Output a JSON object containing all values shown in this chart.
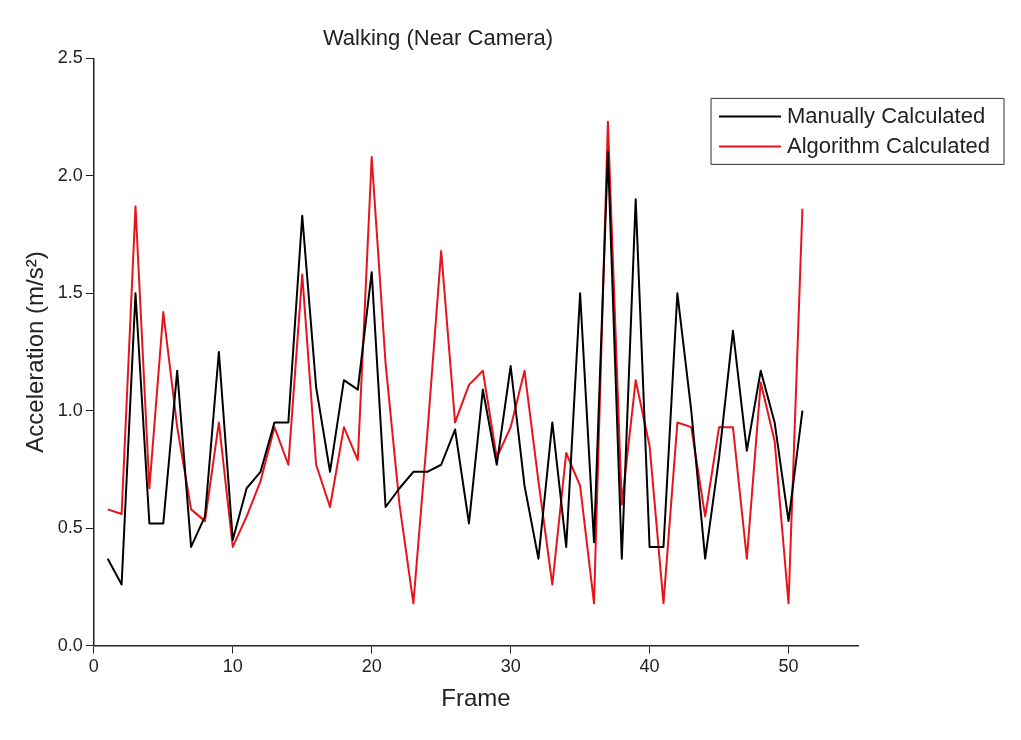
{
  "chart_data": {
    "type": "line",
    "title": "Walking (Near Camera)",
    "xlabel": "Frame",
    "ylabel": "Acceleration (m/s²)",
    "x": [
      1,
      2,
      3,
      4,
      5,
      6,
      7,
      8,
      9,
      10,
      11,
      12,
      13,
      14,
      15,
      16,
      17,
      18,
      19,
      20,
      21,
      22,
      23,
      24,
      25,
      26,
      27,
      28,
      29,
      30,
      31,
      32,
      33,
      34,
      35,
      36,
      37,
      38,
      39,
      40,
      41,
      42,
      43,
      44,
      45,
      46,
      47,
      48,
      49,
      50,
      51
    ],
    "series": [
      {
        "name": "Manually Calculated",
        "color": "#000000",
        "values": [
          0.37,
          0.26,
          1.5,
          0.52,
          0.52,
          1.17,
          0.42,
          0.55,
          1.25,
          0.45,
          0.67,
          0.74,
          0.95,
          0.95,
          1.83,
          1.1,
          0.74,
          1.13,
          1.09,
          1.59,
          0.59,
          0.67,
          0.74,
          0.74,
          0.77,
          0.92,
          0.52,
          1.09,
          0.77,
          1.19,
          0.68,
          0.37,
          0.95,
          0.42,
          1.5,
          0.44,
          2.1,
          0.37,
          1.9,
          0.42,
          0.42,
          1.5,
          1.0,
          0.37,
          0.8,
          1.34,
          0.83,
          1.17,
          0.95,
          0.53,
          1.0
        ]
      },
      {
        "name": "Algorithm Calculated",
        "color": "#e8141b",
        "values": [
          0.58,
          0.56,
          1.87,
          0.67,
          1.42,
          0.93,
          0.58,
          0.53,
          0.95,
          0.42,
          0.55,
          0.7,
          0.93,
          0.77,
          1.58,
          0.77,
          0.59,
          0.93,
          0.79,
          2.08,
          1.2,
          0.6,
          0.18,
          0.9,
          1.68,
          0.95,
          1.11,
          1.17,
          0.8,
          0.93,
          1.17,
          0.7,
          0.26,
          0.82,
          0.68,
          0.18,
          2.23,
          0.6,
          1.13,
          0.85,
          0.18,
          0.95,
          0.93,
          0.55,
          0.93,
          0.93,
          0.37,
          1.12,
          0.87,
          0.18,
          1.86
        ]
      }
    ],
    "xlim": [
      0,
      55
    ],
    "xticks": [
      0,
      10,
      20,
      30,
      40,
      50
    ],
    "ylim": [
      0,
      2.5
    ],
    "yticks": [
      {
        "value": 0,
        "label": "0.0"
      },
      {
        "value": 0.5,
        "label": "0.5"
      },
      {
        "value": 1,
        "label": "1.0"
      },
      {
        "value": 1.5,
        "label": "1.5"
      },
      {
        "value": 2,
        "label": "2.0"
      },
      {
        "value": 2.5,
        "label": "2.5"
      }
    ],
    "grid": false,
    "legend": "top right",
    "marker": "none",
    "line_style": "solid"
  }
}
